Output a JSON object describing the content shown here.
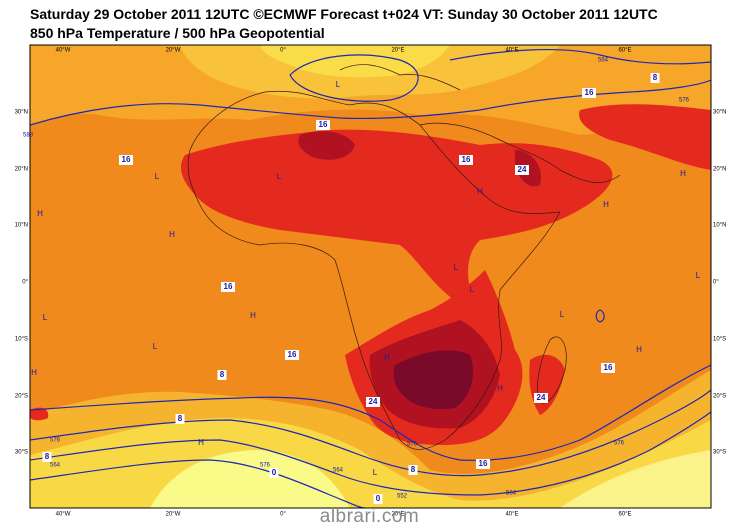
{
  "header": {
    "title": "Saturday 29 October 2011 12UTC ©ECMWF Forecast t+024 VT: Sunday 30 October 2011 12UTC",
    "subtitle": "850 hPa Temperature / 500 hPa Geopotential"
  },
  "map": {
    "longitude_labels": [
      "40°W",
      "20°W",
      "0°",
      "20°E",
      "40°E",
      "60°E"
    ],
    "latitude_labels": [
      "30°N",
      "20°N",
      "10°N",
      "0°",
      "10°S",
      "20°S",
      "30°S"
    ],
    "temperature_labels": [
      "16",
      "16",
      "16",
      "24",
      "8",
      "16",
      "16",
      "16",
      "8",
      "24",
      "24",
      "16",
      "8",
      "8",
      "16",
      "0",
      "0",
      "8"
    ],
    "geopotential_labels": [
      "564",
      "576",
      "588",
      "576",
      "564",
      "576",
      "576",
      "564",
      "552",
      "576",
      "564"
    ],
    "pressure_centers": [
      "L",
      "H",
      "L",
      "H",
      "L",
      "H",
      "L",
      "L",
      "H",
      "L",
      "H",
      "H",
      "H",
      "L",
      "H",
      "H",
      "H",
      "L",
      "H",
      "L",
      "L"
    ]
  },
  "watermark": "albrari.com"
}
